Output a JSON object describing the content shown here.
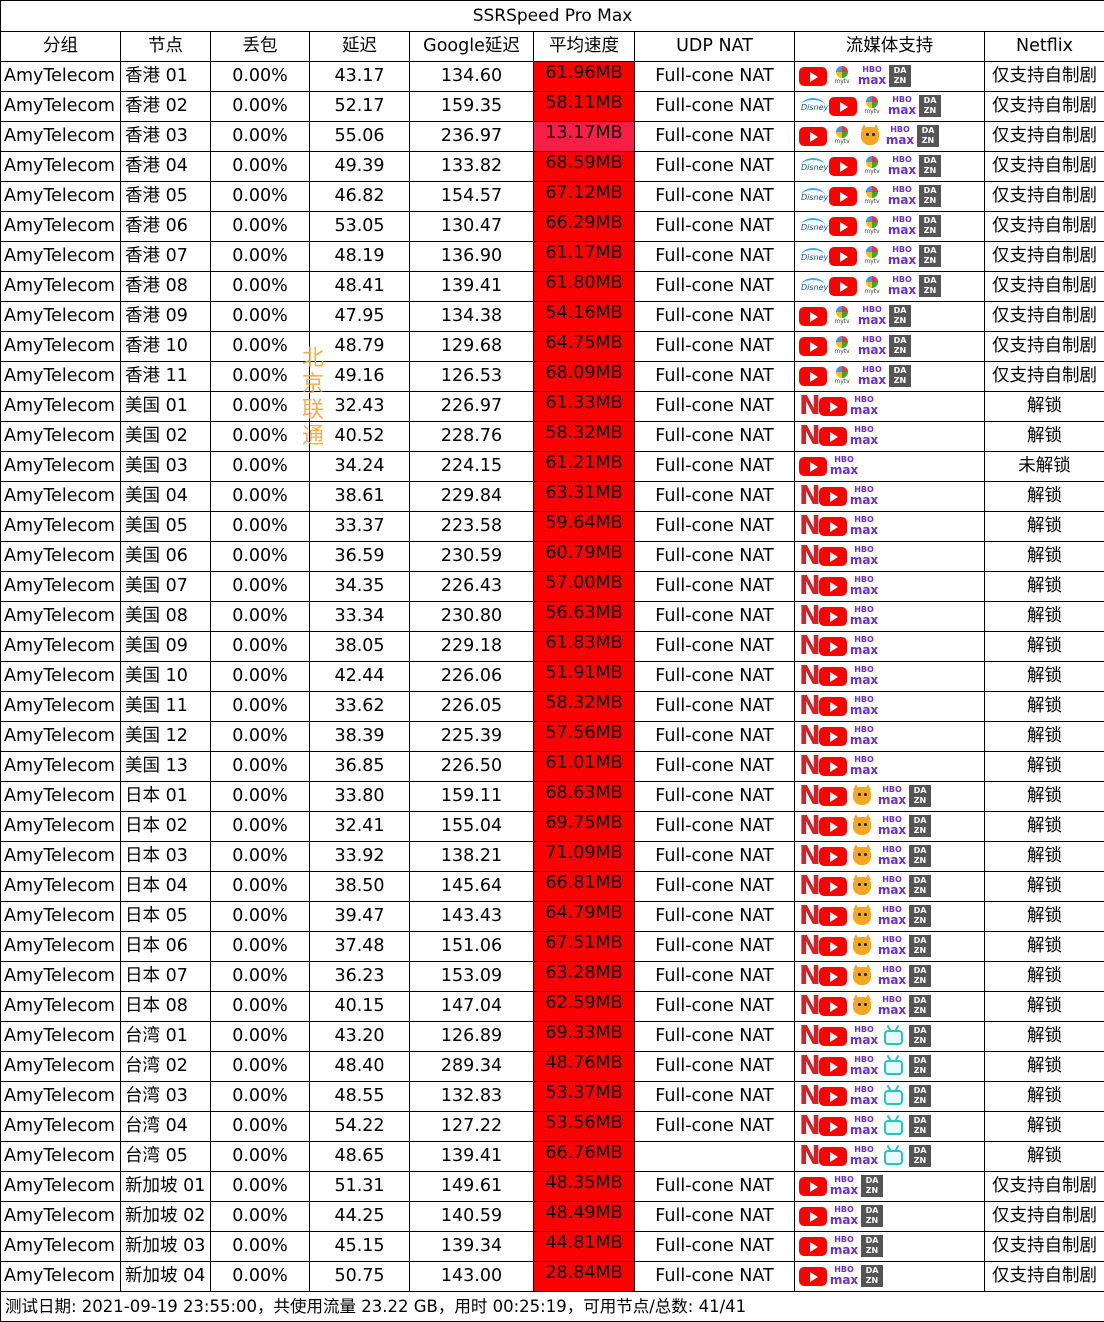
{
  "title": "SSRSpeed Pro Max",
  "headers": [
    "分组",
    "节点",
    "丢包",
    "延迟",
    "Google延迟",
    "平均速度",
    "UDP NAT",
    "流媒体支持",
    "Netflix"
  ],
  "watermark": [
    "北",
    "京",
    "联",
    "通"
  ],
  "colors": {
    "speed_fill": "#ff0000",
    "speed_fill_slow": "#fa1e46",
    "watermark": "#f3a53a"
  },
  "rows": [
    {
      "group": "AmyTelecom",
      "node": "香港 01",
      "loss": "0.00%",
      "ping": "43.17",
      "google": "134.60",
      "speed": "61.96MB",
      "nat": "Full-cone NAT",
      "media": [
        "youtube-icon",
        "tvb-icon",
        "hbo-max-icon",
        "dazn-icon"
      ],
      "netflix": "仅支持自制剧"
    },
    {
      "group": "AmyTelecom",
      "node": "香港 02",
      "loss": "0.00%",
      "ping": "52.17",
      "google": "159.35",
      "speed": "58.11MB",
      "nat": "Full-cone NAT",
      "media": [
        "disney-plus-icon",
        "youtube-icon",
        "tvb-icon",
        "hbo-max-icon",
        "dazn-icon"
      ],
      "netflix": "仅支持自制剧"
    },
    {
      "group": "AmyTelecom",
      "node": "香港 03",
      "loss": "0.00%",
      "ping": "55.06",
      "google": "236.97",
      "speed": "13.17MB",
      "nat": "Full-cone NAT",
      "media": [
        "youtube-icon",
        "tvb-icon",
        "abema-icon",
        "hbo-max-icon",
        "dazn-icon"
      ],
      "netflix": "仅支持自制剧",
      "slow": true
    },
    {
      "group": "AmyTelecom",
      "node": "香港 04",
      "loss": "0.00%",
      "ping": "49.39",
      "google": "133.82",
      "speed": "68.59MB",
      "nat": "Full-cone NAT",
      "media": [
        "disney-plus-icon",
        "youtube-icon",
        "tvb-icon",
        "hbo-max-icon",
        "dazn-icon"
      ],
      "netflix": "仅支持自制剧"
    },
    {
      "group": "AmyTelecom",
      "node": "香港 05",
      "loss": "0.00%",
      "ping": "46.82",
      "google": "154.57",
      "speed": "67.12MB",
      "nat": "Full-cone NAT",
      "media": [
        "disney-plus-icon",
        "youtube-icon",
        "tvb-icon",
        "hbo-max-icon",
        "dazn-icon"
      ],
      "netflix": "仅支持自制剧"
    },
    {
      "group": "AmyTelecom",
      "node": "香港 06",
      "loss": "0.00%",
      "ping": "53.05",
      "google": "130.47",
      "speed": "66.29MB",
      "nat": "Full-cone NAT",
      "media": [
        "disney-plus-icon",
        "youtube-icon",
        "tvb-icon",
        "hbo-max-icon",
        "dazn-icon"
      ],
      "netflix": "仅支持自制剧"
    },
    {
      "group": "AmyTelecom",
      "node": "香港 07",
      "loss": "0.00%",
      "ping": "48.19",
      "google": "136.90",
      "speed": "61.17MB",
      "nat": "Full-cone NAT",
      "media": [
        "disney-plus-icon",
        "youtube-icon",
        "tvb-icon",
        "hbo-max-icon",
        "dazn-icon"
      ],
      "netflix": "仅支持自制剧"
    },
    {
      "group": "AmyTelecom",
      "node": "香港 08",
      "loss": "0.00%",
      "ping": "48.41",
      "google": "139.41",
      "speed": "61.80MB",
      "nat": "Full-cone NAT",
      "media": [
        "disney-plus-icon",
        "youtube-icon",
        "tvb-icon",
        "hbo-max-icon",
        "dazn-icon"
      ],
      "netflix": "仅支持自制剧"
    },
    {
      "group": "AmyTelecom",
      "node": "香港 09",
      "loss": "0.00%",
      "ping": "47.95",
      "google": "134.38",
      "speed": "54.16MB",
      "nat": "Full-cone NAT",
      "media": [
        "youtube-icon",
        "tvb-icon",
        "hbo-max-icon",
        "dazn-icon"
      ],
      "netflix": "仅支持自制剧"
    },
    {
      "group": "AmyTelecom",
      "node": "香港 10",
      "loss": "0.00%",
      "ping": "48.79",
      "google": "129.68",
      "speed": "64.75MB",
      "nat": "Full-cone NAT",
      "media": [
        "youtube-icon",
        "tvb-icon",
        "hbo-max-icon",
        "dazn-icon"
      ],
      "netflix": "仅支持自制剧"
    },
    {
      "group": "AmyTelecom",
      "node": "香港 11",
      "loss": "0.00%",
      "ping": "49.16",
      "google": "126.53",
      "speed": "68.09MB",
      "nat": "Full-cone NAT",
      "media": [
        "youtube-icon",
        "tvb-icon",
        "hbo-max-icon",
        "dazn-icon"
      ],
      "netflix": "仅支持自制剧"
    },
    {
      "group": "AmyTelecom",
      "node": "美国 01",
      "loss": "0.00%",
      "ping": "32.43",
      "google": "226.97",
      "speed": "61.33MB",
      "nat": "Full-cone NAT",
      "media": [
        "netflix-icon",
        "youtube-icon",
        "hbo-max-icon"
      ],
      "netflix": "解锁"
    },
    {
      "group": "AmyTelecom",
      "node": "美国 02",
      "loss": "0.00%",
      "ping": "40.52",
      "google": "228.76",
      "speed": "58.32MB",
      "nat": "Full-cone NAT",
      "media": [
        "netflix-icon",
        "youtube-icon",
        "hbo-max-icon"
      ],
      "netflix": "解锁"
    },
    {
      "group": "AmyTelecom",
      "node": "美国 03",
      "loss": "0.00%",
      "ping": "34.24",
      "google": "224.15",
      "speed": "61.21MB",
      "nat": "Full-cone NAT",
      "media": [
        "youtube-icon",
        "hbo-max-icon"
      ],
      "netflix": "未解锁"
    },
    {
      "group": "AmyTelecom",
      "node": "美国 04",
      "loss": "0.00%",
      "ping": "38.61",
      "google": "229.84",
      "speed": "63.31MB",
      "nat": "Full-cone NAT",
      "media": [
        "netflix-icon",
        "youtube-icon",
        "hbo-max-icon"
      ],
      "netflix": "解锁"
    },
    {
      "group": "AmyTelecom",
      "node": "美国 05",
      "loss": "0.00%",
      "ping": "33.37",
      "google": "223.58",
      "speed": "59.64MB",
      "nat": "Full-cone NAT",
      "media": [
        "netflix-icon",
        "youtube-icon",
        "hbo-max-icon"
      ],
      "netflix": "解锁"
    },
    {
      "group": "AmyTelecom",
      "node": "美国 06",
      "loss": "0.00%",
      "ping": "36.59",
      "google": "230.59",
      "speed": "60.79MB",
      "nat": "Full-cone NAT",
      "media": [
        "netflix-icon",
        "youtube-icon",
        "hbo-max-icon"
      ],
      "netflix": "解锁"
    },
    {
      "group": "AmyTelecom",
      "node": "美国 07",
      "loss": "0.00%",
      "ping": "34.35",
      "google": "226.43",
      "speed": "57.00MB",
      "nat": "Full-cone NAT",
      "media": [
        "netflix-icon",
        "youtube-icon",
        "hbo-max-icon"
      ],
      "netflix": "解锁"
    },
    {
      "group": "AmyTelecom",
      "node": "美国 08",
      "loss": "0.00%",
      "ping": "33.34",
      "google": "230.80",
      "speed": "56.63MB",
      "nat": "Full-cone NAT",
      "media": [
        "netflix-icon",
        "youtube-icon",
        "hbo-max-icon"
      ],
      "netflix": "解锁"
    },
    {
      "group": "AmyTelecom",
      "node": "美国 09",
      "loss": "0.00%",
      "ping": "38.05",
      "google": "229.18",
      "speed": "61.83MB",
      "nat": "Full-cone NAT",
      "media": [
        "netflix-icon",
        "youtube-icon",
        "hbo-max-icon"
      ],
      "netflix": "解锁"
    },
    {
      "group": "AmyTelecom",
      "node": "美国 10",
      "loss": "0.00%",
      "ping": "42.44",
      "google": "226.06",
      "speed": "51.91MB",
      "nat": "Full-cone NAT",
      "media": [
        "netflix-icon",
        "youtube-icon",
        "hbo-max-icon"
      ],
      "netflix": "解锁"
    },
    {
      "group": "AmyTelecom",
      "node": "美国 11",
      "loss": "0.00%",
      "ping": "33.62",
      "google": "226.05",
      "speed": "58.32MB",
      "nat": "Full-cone NAT",
      "media": [
        "netflix-icon",
        "youtube-icon",
        "hbo-max-icon"
      ],
      "netflix": "解锁"
    },
    {
      "group": "AmyTelecom",
      "node": "美国 12",
      "loss": "0.00%",
      "ping": "38.39",
      "google": "225.39",
      "speed": "57.56MB",
      "nat": "Full-cone NAT",
      "media": [
        "netflix-icon",
        "youtube-icon",
        "hbo-max-icon"
      ],
      "netflix": "解锁"
    },
    {
      "group": "AmyTelecom",
      "node": "美国 13",
      "loss": "0.00%",
      "ping": "36.85",
      "google": "226.50",
      "speed": "61.01MB",
      "nat": "Full-cone NAT",
      "media": [
        "netflix-icon",
        "youtube-icon",
        "hbo-max-icon"
      ],
      "netflix": "解锁"
    },
    {
      "group": "AmyTelecom",
      "node": "日本 01",
      "loss": "0.00%",
      "ping": "33.80",
      "google": "159.11",
      "speed": "68.63MB",
      "nat": "Full-cone NAT",
      "media": [
        "netflix-icon",
        "youtube-icon",
        "abema-icon",
        "hbo-max-icon",
        "dazn-icon"
      ],
      "netflix": "解锁"
    },
    {
      "group": "AmyTelecom",
      "node": "日本 02",
      "loss": "0.00%",
      "ping": "32.41",
      "google": "155.04",
      "speed": "69.75MB",
      "nat": "Full-cone NAT",
      "media": [
        "netflix-icon",
        "youtube-icon",
        "abema-icon",
        "hbo-max-icon",
        "dazn-icon"
      ],
      "netflix": "解锁"
    },
    {
      "group": "AmyTelecom",
      "node": "日本 03",
      "loss": "0.00%",
      "ping": "33.92",
      "google": "138.21",
      "speed": "71.09MB",
      "nat": "Full-cone NAT",
      "media": [
        "netflix-icon",
        "youtube-icon",
        "abema-icon",
        "hbo-max-icon",
        "dazn-icon"
      ],
      "netflix": "解锁"
    },
    {
      "group": "AmyTelecom",
      "node": "日本 04",
      "loss": "0.00%",
      "ping": "38.50",
      "google": "145.64",
      "speed": "66.81MB",
      "nat": "Full-cone NAT",
      "media": [
        "netflix-icon",
        "youtube-icon",
        "abema-icon",
        "hbo-max-icon",
        "dazn-icon"
      ],
      "netflix": "解锁"
    },
    {
      "group": "AmyTelecom",
      "node": "日本 05",
      "loss": "0.00%",
      "ping": "39.47",
      "google": "143.43",
      "speed": "64.79MB",
      "nat": "Full-cone NAT",
      "media": [
        "netflix-icon",
        "youtube-icon",
        "abema-icon",
        "hbo-max-icon",
        "dazn-icon"
      ],
      "netflix": "解锁"
    },
    {
      "group": "AmyTelecom",
      "node": "日本 06",
      "loss": "0.00%",
      "ping": "37.48",
      "google": "151.06",
      "speed": "67.51MB",
      "nat": "Full-cone NAT",
      "media": [
        "netflix-icon",
        "youtube-icon",
        "abema-icon",
        "hbo-max-icon",
        "dazn-icon"
      ],
      "netflix": "解锁"
    },
    {
      "group": "AmyTelecom",
      "node": "日本 07",
      "loss": "0.00%",
      "ping": "36.23",
      "google": "153.09",
      "speed": "63.28MB",
      "nat": "Full-cone NAT",
      "media": [
        "netflix-icon",
        "youtube-icon",
        "abema-icon",
        "hbo-max-icon",
        "dazn-icon"
      ],
      "netflix": "解锁"
    },
    {
      "group": "AmyTelecom",
      "node": "日本 08",
      "loss": "0.00%",
      "ping": "40.15",
      "google": "147.04",
      "speed": "62.59MB",
      "nat": "Full-cone NAT",
      "media": [
        "netflix-icon",
        "youtube-icon",
        "abema-icon",
        "hbo-max-icon",
        "dazn-icon"
      ],
      "netflix": "解锁"
    },
    {
      "group": "AmyTelecom",
      "node": "台湾 01",
      "loss": "0.00%",
      "ping": "43.20",
      "google": "126.89",
      "speed": "69.33MB",
      "nat": "Full-cone NAT",
      "media": [
        "netflix-icon",
        "youtube-icon",
        "hbo-max-icon",
        "bilibili-icon",
        "dazn-icon"
      ],
      "netflix": "解锁"
    },
    {
      "group": "AmyTelecom",
      "node": "台湾 02",
      "loss": "0.00%",
      "ping": "48.40",
      "google": "289.34",
      "speed": "48.76MB",
      "nat": "Full-cone NAT",
      "media": [
        "netflix-icon",
        "youtube-icon",
        "hbo-max-icon",
        "bilibili-icon",
        "dazn-icon"
      ],
      "netflix": "解锁"
    },
    {
      "group": "AmyTelecom",
      "node": "台湾 03",
      "loss": "0.00%",
      "ping": "48.55",
      "google": "132.83",
      "speed": "53.37MB",
      "nat": "Full-cone NAT",
      "media": [
        "netflix-icon",
        "youtube-icon",
        "hbo-max-icon",
        "bilibili-icon",
        "dazn-icon"
      ],
      "netflix": "解锁"
    },
    {
      "group": "AmyTelecom",
      "node": "台湾 04",
      "loss": "0.00%",
      "ping": "54.22",
      "google": "127.22",
      "speed": "53.56MB",
      "nat": "Full-cone NAT",
      "media": [
        "netflix-icon",
        "youtube-icon",
        "hbo-max-icon",
        "bilibili-icon",
        "dazn-icon"
      ],
      "netflix": "解锁"
    },
    {
      "group": "AmyTelecom",
      "node": "台湾 05",
      "loss": "0.00%",
      "ping": "48.65",
      "google": "139.41",
      "speed": "66.76MB",
      "nat": "",
      "media": [
        "netflix-icon",
        "youtube-icon",
        "hbo-max-icon",
        "bilibili-icon",
        "dazn-icon"
      ],
      "netflix": "解锁"
    },
    {
      "group": "AmyTelecom",
      "node": "新加坡 01",
      "loss": "0.00%",
      "ping": "51.31",
      "google": "149.61",
      "speed": "48.35MB",
      "nat": "Full-cone NAT",
      "media": [
        "youtube-icon",
        "hbo-max-icon",
        "dazn-icon"
      ],
      "netflix": "仅支持自制剧"
    },
    {
      "group": "AmyTelecom",
      "node": "新加坡 02",
      "loss": "0.00%",
      "ping": "44.25",
      "google": "140.59",
      "speed": "48.49MB",
      "nat": "Full-cone NAT",
      "media": [
        "youtube-icon",
        "hbo-max-icon",
        "dazn-icon"
      ],
      "netflix": "仅支持自制剧"
    },
    {
      "group": "AmyTelecom",
      "node": "新加坡 03",
      "loss": "0.00%",
      "ping": "45.15",
      "google": "139.34",
      "speed": "44.81MB",
      "nat": "Full-cone NAT",
      "media": [
        "youtube-icon",
        "hbo-max-icon",
        "dazn-icon"
      ],
      "netflix": "仅支持自制剧"
    },
    {
      "group": "AmyTelecom",
      "node": "新加坡 04",
      "loss": "0.00%",
      "ping": "50.75",
      "google": "143.00",
      "speed": "28.84MB",
      "nat": "Full-cone NAT",
      "media": [
        "youtube-icon",
        "hbo-max-icon",
        "dazn-icon"
      ],
      "netflix": "仅支持自制剧"
    }
  ],
  "footer": "测试日期: 2021-09-19 23:55:00，共使用流量 23.22 GB，用时 00:25:19，可用节点/总数: 41/41"
}
